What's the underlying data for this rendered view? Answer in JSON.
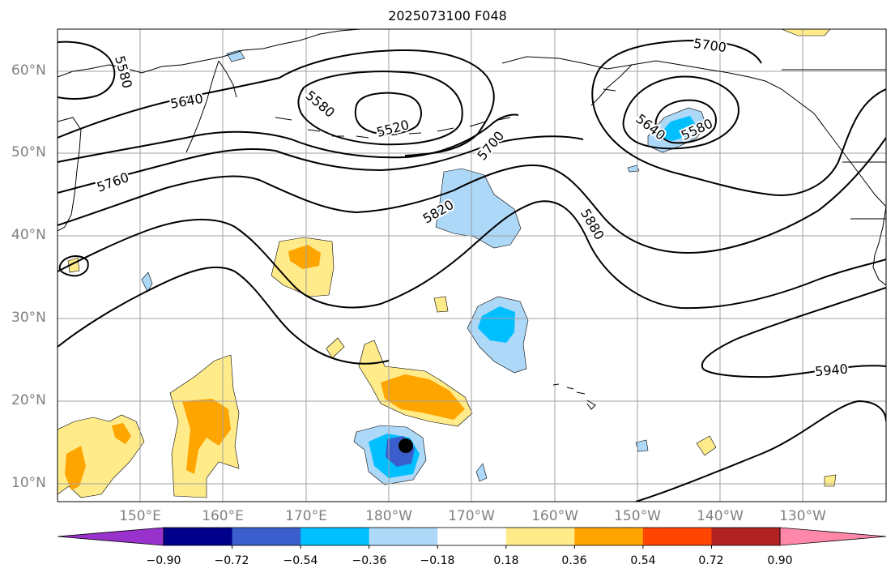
{
  "title": "2025073100 F048",
  "lat_labels": [
    "60°N",
    "50°N",
    "40°N",
    "30°N",
    "20°N",
    "10°N"
  ],
  "lon_labels": [
    "150°E",
    "160°E",
    "170°E",
    "180°W",
    "170°W",
    "160°W",
    "150°W",
    "140°W",
    "130°W"
  ],
  "contour_labels": [
    "5580",
    "5640",
    "5580",
    "5520",
    "5700",
    "5760",
    "5820",
    "5880",
    "5700",
    "5640",
    "5580",
    "5940"
  ],
  "colorbar": {
    "colors": [
      "#9932cc",
      "#00008b",
      "#3a5fcd",
      "#00bfff",
      "#add8f8",
      "#ffffff",
      "#ffeb8a",
      "#ffa500",
      "#ff4500",
      "#b22222",
      "#ff88aa"
    ],
    "tick_labels": [
      "−0.90",
      "−0.72",
      "−0.54",
      "−0.36",
      "−0.18",
      "0.18",
      "0.36",
      "0.54",
      "0.72",
      "0.90"
    ]
  },
  "colors": {
    "contour": "#000000",
    "grid": "#a0a0a0",
    "coast": "#000000",
    "marker": "#000000"
  }
}
